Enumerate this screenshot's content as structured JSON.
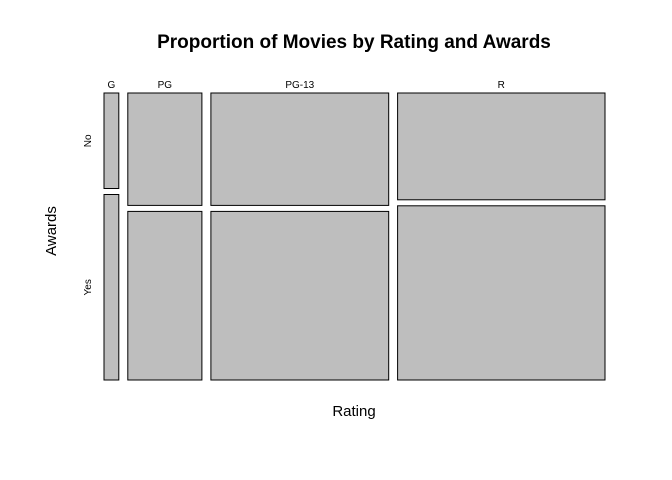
{
  "chart_data": {
    "type": "mosaic",
    "title": "Proportion of Movies by Rating and Awards",
    "xlabel": "Rating",
    "ylabel": "Awards",
    "x_categories": [
      "G",
      "PG",
      "PG-13",
      "R"
    ],
    "y_categories": [
      "No",
      "Yes"
    ],
    "column_proportions": [
      0.03,
      0.15,
      0.36,
      0.42
    ],
    "no_share_within_column": [
      0.34,
      0.4,
      0.4,
      0.38
    ],
    "fill_color": "#bebebe",
    "border_color": "#000000"
  }
}
